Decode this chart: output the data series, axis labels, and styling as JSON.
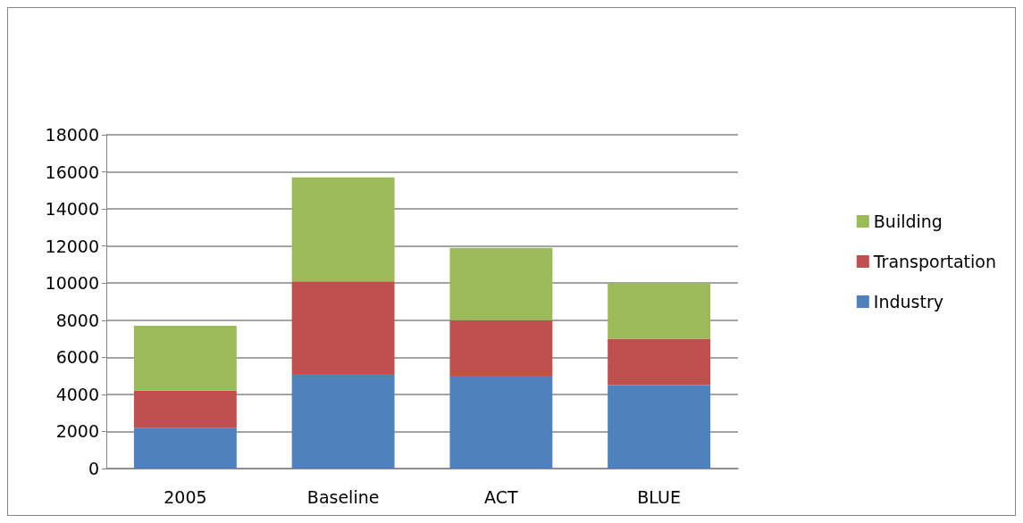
{
  "chart_data": {
    "type": "bar",
    "stacked": true,
    "categories": [
      "2005",
      "Baseline",
      "ACT",
      "BLUE"
    ],
    "series": [
      {
        "name": "Industry",
        "color": "#4f81bd",
        "values": [
          2200,
          5100,
          5000,
          4500
        ]
      },
      {
        "name": "Transportation",
        "color": "#c0504d",
        "values": [
          2000,
          5000,
          3000,
          2500
        ]
      },
      {
        "name": "Building",
        "color": "#9bbb59",
        "values": [
          3500,
          5600,
          3900,
          3000
        ]
      }
    ],
    "ylim": [
      0,
      18000
    ],
    "yticks": [
      0,
      2000,
      4000,
      6000,
      8000,
      10000,
      12000,
      14000,
      16000,
      18000
    ],
    "grid": "y",
    "legend": "right"
  }
}
